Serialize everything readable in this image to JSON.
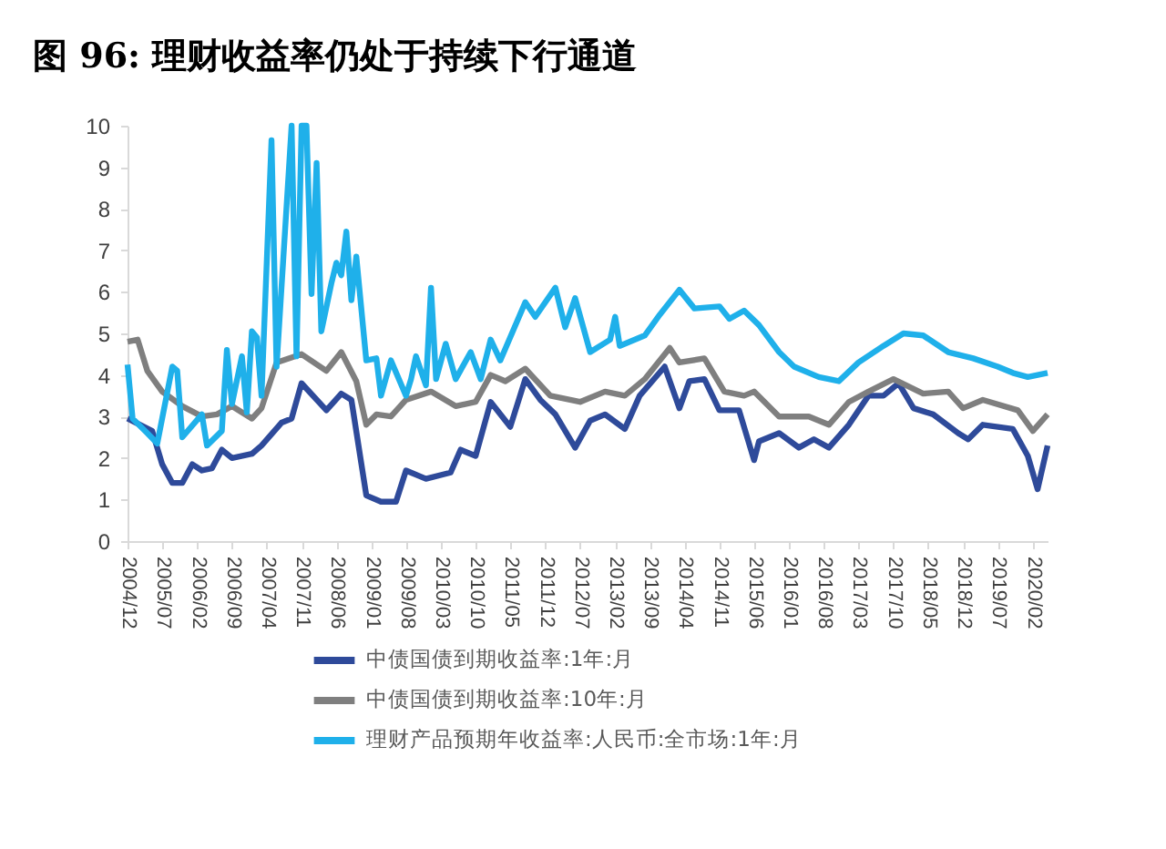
{
  "chart_data": {
    "type": "line",
    "title": "图 96: 理财收益率仍处于持续下行通道",
    "series": [
      {
        "name": "中债国债到期收益率:1年:月",
        "color": "#2e4a9a",
        "x": [
          "2004-12",
          "2005-05",
          "2005-07",
          "2005-09",
          "2005-11",
          "2006-01",
          "2006-03",
          "2006-05",
          "2006-07",
          "2006-09",
          "2007-01",
          "2007-03",
          "2007-07",
          "2007-09",
          "2007-11",
          "2008-04",
          "2008-07",
          "2008-09",
          "2008-12",
          "2009-03",
          "2009-06",
          "2009-08",
          "2009-12",
          "2010-05",
          "2010-07",
          "2010-10",
          "2011-01",
          "2011-05",
          "2011-08",
          "2011-11",
          "2012-02",
          "2012-06",
          "2012-09",
          "2012-12",
          "2013-04",
          "2013-07",
          "2013-12",
          "2014-03",
          "2014-05",
          "2014-08",
          "2014-11",
          "2015-03",
          "2015-06",
          "2015-07",
          "2015-11",
          "2016-03",
          "2016-06",
          "2016-09",
          "2017-01",
          "2017-05",
          "2017-08",
          "2017-11",
          "2018-02",
          "2018-06",
          "2018-11",
          "2019-01",
          "2019-04",
          "2019-10",
          "2020-01",
          "2020-03",
          "2020-05"
        ],
        "values": [
          2.95,
          2.65,
          1.85,
          1.4,
          1.4,
          1.85,
          1.7,
          1.75,
          2.2,
          2.0,
          2.1,
          2.3,
          2.85,
          2.95,
          3.8,
          3.15,
          3.55,
          3.4,
          1.1,
          0.95,
          0.95,
          1.7,
          1.5,
          1.65,
          2.2,
          2.05,
          3.35,
          2.75,
          3.9,
          3.4,
          3.05,
          2.25,
          2.9,
          3.05,
          2.7,
          3.5,
          4.2,
          3.2,
          3.85,
          3.9,
          3.15,
          3.15,
          1.95,
          2.4,
          2.6,
          2.25,
          2.45,
          2.25,
          2.8,
          3.5,
          3.5,
          3.8,
          3.2,
          3.05,
          2.6,
          2.45,
          2.8,
          2.7,
          2.05,
          1.25,
          2.3
        ]
      },
      {
        "name": "中债国债到期收益率:10年:月",
        "color": "#7f7f7f",
        "x": [
          "2004-12",
          "2005-02",
          "2005-04",
          "2005-07",
          "2005-11",
          "2006-03",
          "2006-06",
          "2006-09",
          "2007-01",
          "2007-03",
          "2007-06",
          "2007-11",
          "2008-04",
          "2008-07",
          "2008-10",
          "2008-12",
          "2009-02",
          "2009-05",
          "2009-08",
          "2010-01",
          "2010-06",
          "2010-10",
          "2011-01",
          "2011-04",
          "2011-08",
          "2012-01",
          "2012-07",
          "2012-12",
          "2013-04",
          "2013-08",
          "2014-01",
          "2014-03",
          "2014-08",
          "2014-12",
          "2015-04",
          "2015-06",
          "2015-11",
          "2016-05",
          "2016-09",
          "2017-01",
          "2017-05",
          "2017-10",
          "2018-04",
          "2018-09",
          "2018-12",
          "2019-04",
          "2019-11",
          "2020-02",
          "2020-05"
        ],
        "values": [
          4.8,
          4.85,
          4.1,
          3.6,
          3.25,
          3.0,
          3.05,
          3.25,
          2.95,
          3.2,
          4.3,
          4.5,
          4.1,
          4.55,
          3.85,
          2.8,
          3.05,
          3.0,
          3.4,
          3.6,
          3.25,
          3.35,
          4.0,
          3.85,
          4.15,
          3.5,
          3.35,
          3.6,
          3.5,
          3.9,
          4.65,
          4.3,
          4.4,
          3.6,
          3.5,
          3.6,
          3.0,
          3.0,
          2.8,
          3.35,
          3.6,
          3.9,
          3.55,
          3.6,
          3.2,
          3.4,
          3.15,
          2.65,
          3.05
        ]
      },
      {
        "name": "理财产品预期年收益率:人民币:全市场:1年:月",
        "color": "#1fb0ea",
        "x": [
          "2004-12",
          "2005-01",
          "2005-04",
          "2005-06",
          "2005-09",
          "2005-10",
          "2005-11",
          "2006-03",
          "2006-04",
          "2006-07",
          "2006-08",
          "2006-09",
          "2006-11",
          "2006-12",
          "2007-01",
          "2007-02",
          "2007-03",
          "2007-05",
          "2007-06",
          "2007-09",
          "2007-10",
          "2007-11",
          "2007-12",
          "2008-01",
          "2008-02",
          "2008-03",
          "2008-05",
          "2008-06",
          "2008-07",
          "2008-08",
          "2008-09",
          "2008-10",
          "2008-12",
          "2009-02",
          "2009-03",
          "2009-05",
          "2009-08",
          "2009-09",
          "2009-10",
          "2009-12",
          "2010-01",
          "2010-02",
          "2010-04",
          "2010-06",
          "2010-09",
          "2010-11",
          "2011-01",
          "2011-03",
          "2011-08",
          "2011-10",
          "2012-02",
          "2012-04",
          "2012-06",
          "2012-09",
          "2013-01",
          "2013-02",
          "2013-03",
          "2013-08",
          "2013-11",
          "2014-03",
          "2014-06",
          "2014-11",
          "2015-01",
          "2015-04",
          "2015-07",
          "2015-11",
          "2016-02",
          "2016-07",
          "2016-11",
          "2017-03",
          "2017-08",
          "2017-12",
          "2018-04",
          "2018-09",
          "2019-02",
          "2019-07",
          "2019-10",
          "2020-01",
          "2020-05"
        ],
        "values": [
          4.25,
          2.95,
          2.6,
          2.35,
          4.2,
          4.1,
          2.5,
          3.05,
          2.3,
          2.65,
          4.6,
          3.3,
          4.45,
          3.1,
          5.05,
          4.9,
          3.5,
          9.65,
          4.2,
          10,
          4.45,
          10,
          10,
          5.95,
          9.1,
          5.05,
          6.2,
          6.7,
          6.4,
          7.45,
          5.8,
          6.85,
          4.35,
          4.4,
          3.5,
          4.35,
          3.5,
          3.9,
          4.45,
          3.75,
          6.1,
          3.9,
          4.75,
          3.9,
          4.55,
          3.9,
          4.85,
          4.35,
          5.75,
          5.4,
          6.1,
          5.15,
          5.85,
          4.55,
          4.85,
          5.4,
          4.7,
          4.95,
          5.45,
          6.05,
          5.6,
          5.65,
          5.35,
          5.55,
          5.2,
          4.55,
          4.2,
          3.95,
          3.85,
          4.3,
          4.7,
          5.0,
          4.95,
          4.55,
          4.4,
          4.2,
          4.05,
          3.95,
          4.05
        ]
      }
    ],
    "xlim": [
      "2004-12",
      "2020-05"
    ],
    "xticks": [
      {
        "value": "2004-12",
        "label": "2004/12"
      },
      {
        "value": "2005-07",
        "label": "2005/07"
      },
      {
        "value": "2006-02",
        "label": "2006/02"
      },
      {
        "value": "2006-09",
        "label": "2006/09"
      },
      {
        "value": "2007-04",
        "label": "2007/04"
      },
      {
        "value": "2007-11",
        "label": "2007/11"
      },
      {
        "value": "2008-06",
        "label": "2008/06"
      },
      {
        "value": "2009-01",
        "label": "2009/01"
      },
      {
        "value": "2009-08",
        "label": "2009/08"
      },
      {
        "value": "2010-03",
        "label": "2010/03"
      },
      {
        "value": "2010-10",
        "label": "2010/10"
      },
      {
        "value": "2011-05",
        "label": "2011/05"
      },
      {
        "value": "2011-12",
        "label": "2011/12"
      },
      {
        "value": "2012-07",
        "label": "2012/07"
      },
      {
        "value": "2013-02",
        "label": "2013/02"
      },
      {
        "value": "2013-09",
        "label": "2013/09"
      },
      {
        "value": "2014-04",
        "label": "2014/04"
      },
      {
        "value": "2014-11",
        "label": "2014/11"
      },
      {
        "value": "2015-06",
        "label": "2015/06"
      },
      {
        "value": "2016-01",
        "label": "2016/01"
      },
      {
        "value": "2016-08",
        "label": "2016/08"
      },
      {
        "value": "2017-03",
        "label": "2017/03"
      },
      {
        "value": "2017-10",
        "label": "2017/10"
      },
      {
        "value": "2018-05",
        "label": "2018/05"
      },
      {
        "value": "2018-12",
        "label": "2018/12"
      },
      {
        "value": "2019-07",
        "label": "2019/07"
      },
      {
        "value": "2020-02",
        "label": "2020/02"
      }
    ],
    "ylim": [
      0,
      10
    ],
    "yticks": [
      0,
      1,
      2,
      3,
      4,
      5,
      6,
      7,
      8,
      9,
      10
    ],
    "grid": false,
    "legend": "bottom",
    "marker": "none",
    "line_style": "solid"
  }
}
